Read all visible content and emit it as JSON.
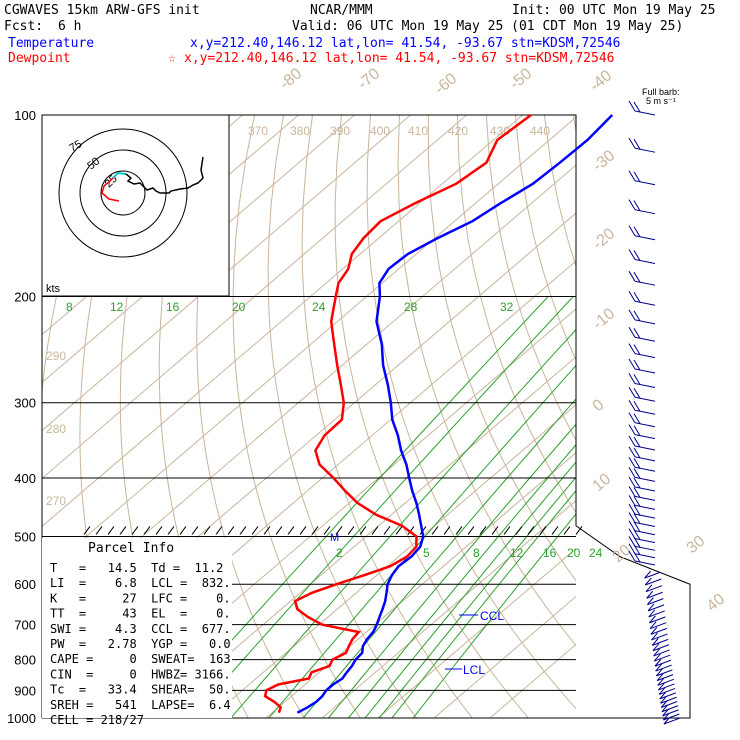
{
  "header": {
    "model": "CGWAVES 15km ARW-GFS init",
    "org": "NCAR/MMM",
    "init": "Init: 00 UTC Mon 19 May 25",
    "fcst_label": "Fcst:",
    "fcst_value": "6 h",
    "valid": "Valid: 06 UTC Mon 19 May 25 (01 CDT Mon 19 May 25)",
    "temp_label": "Temperature",
    "temp_info": "x,y=212.40,146.12   lat,lon= 41.54, -93.67   stn=KDSM,72546",
    "dew_label": "Dewpoint",
    "dew_star": "☆",
    "dew_info": "x,y=212.40,146.12   lat,lon= 41.54, -93.67   stn=KDSM,72546",
    "barb_title_1": "Full barb:",
    "barb_title_2": "5 m s⁻¹"
  },
  "colors": {
    "temperature": "#0000ff",
    "dewpoint": "#ff0000",
    "dry_adiabat": "#c8a882",
    "mixing_ratio": "#2ca02c",
    "isotherm": "#b89a78",
    "hodo_trace": "#000000",
    "hodo_cyan": "#00c8c8"
  },
  "chart_data": {
    "type": "line",
    "title": "Skew-T log-p sounding",
    "ylabel": "",
    "pressure_levels_hpa": [
      100,
      200,
      300,
      400,
      500,
      600,
      700,
      800,
      900,
      1000
    ],
    "y_scale": "log",
    "isotherm_labels": [
      "-80",
      "-70",
      "-60",
      "-50",
      "-40",
      "-30",
      "-20",
      "-10",
      "0",
      "10",
      "20",
      "30",
      "40"
    ],
    "theta_labels": [
      "370",
      "380",
      "390",
      "400",
      "410",
      "420",
      "430",
      "440",
      "290",
      "280",
      "270"
    ],
    "mixing_ratio_labels_upper": [
      "8",
      "12",
      "16",
      "20",
      "24",
      "28",
      "32"
    ],
    "mixing_ratio_labels_lower": [
      "2",
      "5",
      "8",
      "12",
      "16",
      "20",
      "24"
    ],
    "series": [
      {
        "name": "Temperature",
        "p": [
          980,
          960,
          940,
          920,
          900,
          880,
          860,
          840,
          820,
          800,
          780,
          760,
          740,
          720,
          700,
          680,
          660,
          640,
          620,
          600,
          580,
          560,
          540,
          520,
          500,
          480,
          460,
          440,
          420,
          400,
          380,
          360,
          340,
          320,
          300,
          280,
          260,
          240,
          220,
          200,
          190,
          180,
          170,
          160,
          150,
          140,
          130,
          120,
          110,
          100
        ],
        "t": [
          14.5,
          15.2,
          15.6,
          15.5,
          15.0,
          15.0,
          15.4,
          14.9,
          14.5,
          13.8,
          13.6,
          12.3,
          11.6,
          11.2,
          10.3,
          9.2,
          8.1,
          6.9,
          5.4,
          3.8,
          2.7,
          2.0,
          2.3,
          1.8,
          0.2,
          -2.4,
          -5.1,
          -8.0,
          -11.3,
          -14.5,
          -17.8,
          -21.7,
          -25.4,
          -29.7,
          -33.5,
          -37.8,
          -42.7,
          -47.3,
          -53.0,
          -57.6,
          -60.5,
          -61.8,
          -61.5,
          -59.5,
          -56.8,
          -55.5,
          -53.8,
          -53.4,
          -53.2,
          -54.0
        ]
      },
      {
        "name": "Dewpoint",
        "p": [
          980,
          960,
          940,
          920,
          900,
          880,
          860,
          840,
          820,
          800,
          780,
          760,
          740,
          720,
          700,
          680,
          660,
          640,
          620,
          600,
          580,
          560,
          540,
          520,
          500,
          480,
          460,
          440,
          420,
          400,
          380,
          360,
          340,
          320,
          300,
          280,
          260,
          240,
          220,
          200,
          190,
          180,
          170,
          160,
          150,
          140,
          130,
          120,
          110,
          100
        ],
        "t": [
          11.2,
          10.4,
          8.1,
          5.3,
          4.3,
          5.2,
          9.4,
          8.6,
          10.5,
          9.7,
          10.7,
          9.8,
          9.0,
          8.6,
          0.5,
          -3.6,
          -7.1,
          -9.2,
          -7.9,
          -5.3,
          -2.3,
          0.5,
          1.5,
          1.1,
          -1.0,
          -5.8,
          -12.8,
          -18.5,
          -23.3,
          -28.0,
          -33.3,
          -37.0,
          -38.5,
          -38.7,
          -41.9,
          -46.2,
          -50.9,
          -55.8,
          -61.1,
          -65.5,
          -67.8,
          -69.0,
          -71.5,
          -72.7,
          -73.2,
          -70.8,
          -67.5,
          -66.5,
          -69.3,
          -68.5
        ]
      }
    ],
    "wind_barbs_count": 60
  },
  "hodograph": {
    "ring_labels": [
      "75",
      "50",
      "25"
    ],
    "units_label": "kts"
  },
  "markers": {
    "ccl_label": "CCL",
    "lcl_label": "LCL",
    "m_label": "M"
  },
  "parcel_info": {
    "title": "Parcel Info",
    "rows": [
      "T   =   14.5  Td =  11.2",
      "LI  =    6.8  LCL =  832.",
      "K   =     27  LFC =    0.",
      "TT  =     43  EL  =    0.",
      "SWI =    4.3  CCL =  677.",
      "PW  =   2.78  YGP =   0.0",
      "CAPE =     0  SWEAT=  163",
      "CIN  =     0  HWBZ= 3166.",
      "Tc  =   33.4  SHEAR=  50.",
      "SREH =   541  LAPSE=  6.4",
      "CELL = 218/27"
    ]
  }
}
